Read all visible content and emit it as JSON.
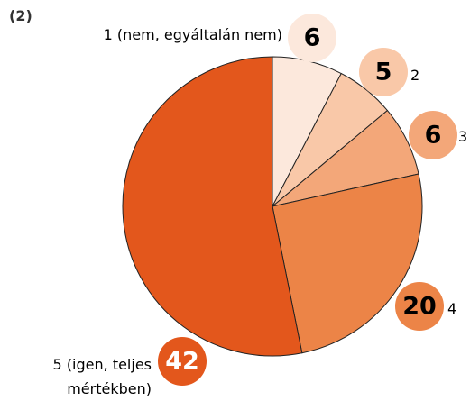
{
  "chart_data": {
    "type": "pie",
    "title": "(2)",
    "categories": [
      "1 (nem, egyáltalán nem)",
      "2",
      "3",
      "4",
      "5 (igen, teljes mértékben)"
    ],
    "values": [
      6,
      5,
      6,
      20,
      42
    ],
    "colors": [
      "#fce8dc",
      "#f9c8a8",
      "#f3a779",
      "#ec8447",
      "#e3571c"
    ]
  }
}
